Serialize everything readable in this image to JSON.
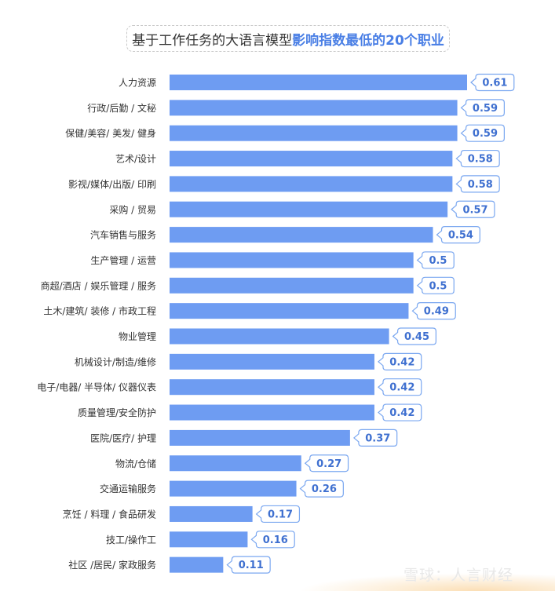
{
  "title": {
    "prefix": "基于工作任务的大语言模型",
    "highlight": "影响指数最低的20个职业"
  },
  "colors": {
    "bar": "#6e9cf2",
    "label_border": "#7aa7f0",
    "label_text": "#3f70d0",
    "category_text": "#333333",
    "title_highlight": "#4a7fe5"
  },
  "watermark": "雪球：人言财经",
  "chart_data": {
    "type": "bar",
    "orientation": "horizontal",
    "categories": [
      "人力资源",
      "行政/后勤 / 文秘",
      "保健/美容/ 美发/ 健身",
      "艺术/设计",
      "影视/媒体/出版/ 印刷",
      "采购 / 贸易",
      "汽车销售与服务",
      "生产管理 / 运营",
      "商超/酒店 / 娱乐管理 / 服务",
      "土木/建筑/ 装修 / 市政工程",
      "物业管理",
      "机械设计/制造/维修",
      "电子/电器/ 半导体/ 仪器仪表",
      "质量管理/安全防护",
      "医院/医疗/ 护理",
      "物流/仓储",
      "交通运输服务",
      "烹饪 / 料理 / 食品研发",
      "技工/操作工",
      "社区 /居民/ 家政服务"
    ],
    "values": [
      0.61,
      0.59,
      0.59,
      0.58,
      0.58,
      0.57,
      0.54,
      0.5,
      0.5,
      0.49,
      0.45,
      0.42,
      0.42,
      0.42,
      0.37,
      0.27,
      0.26,
      0.17,
      0.16,
      0.11
    ],
    "value_labels": [
      "0.61",
      "0.59",
      "0.59",
      "0.58",
      "0.58",
      "0.57",
      "0.54",
      "0.5",
      "0.5",
      "0.49",
      "0.45",
      "0.42",
      "0.42",
      "0.42",
      "0.37",
      "0.27",
      "0.26",
      "0.17",
      "0.16",
      "0.11"
    ],
    "xlim": [
      0,
      0.61
    ],
    "grid": false,
    "legend": "none",
    "xlabel": "",
    "ylabel": ""
  }
}
